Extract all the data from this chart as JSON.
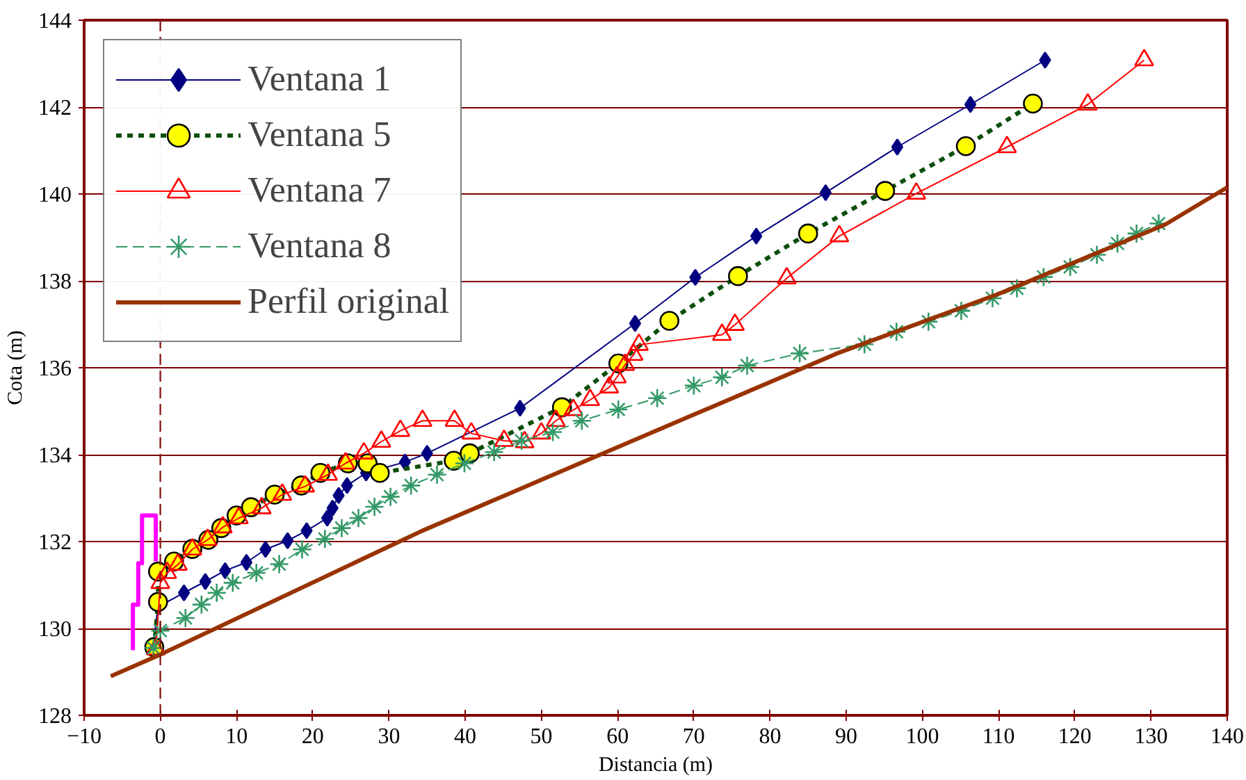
{
  "chart_data": {
    "type": "line",
    "xlabel": "Distancia (m)",
    "ylabel": "Cota (m)",
    "xlim": [
      -10,
      140
    ],
    "xticks": [
      -10,
      0,
      10,
      20,
      30,
      40,
      50,
      60,
      70,
      80,
      90,
      100,
      110,
      120,
      130,
      140
    ],
    "ylim": [
      128,
      144
    ],
    "yticks": [
      128,
      130,
      132,
      134,
      136,
      138,
      140,
      142,
      144
    ],
    "grid": "y",
    "legend": "top left",
    "ref_lines": [
      {
        "axis": "x",
        "value": 0,
        "color": "#8b1a1a",
        "line_style": "dashed"
      }
    ],
    "series": [
      {
        "name": "Ventana 1",
        "color": "#000080",
        "marker": "diamond",
        "line_style": "solid",
        "x": [
          -1,
          -0.3,
          3.1,
          5.9,
          8.5,
          11.3,
          13.8,
          16.7,
          19.2,
          21.9,
          22.6,
          23.4,
          24.5,
          27.0,
          32.1,
          35.0,
          47.2,
          62.3,
          70.2,
          78.2,
          87.3,
          96.7,
          106.3,
          116.1
        ],
        "values": [
          129.55,
          130.5,
          130.82,
          131.08,
          131.33,
          131.52,
          131.82,
          132.02,
          132.25,
          132.54,
          132.77,
          133.06,
          133.29,
          133.58,
          133.83,
          134.03,
          135.07,
          137.02,
          138.08,
          139.03,
          140.03,
          141.08,
          142.06,
          143.08
        ]
      },
      {
        "name": "Ventana 5",
        "color": "#0b4f0b",
        "marker": "circle",
        "line_style": "dotted",
        "colors": [
          "#ffff00",
          "#ffff00",
          "#ffff00",
          "#ffff00",
          "#ffff00",
          "#ffff00",
          "#ffff00",
          "#ffff00",
          "#ffff00",
          "#ffff00",
          "#ffff00",
          "#ffff00",
          "#ffff00",
          "#ffff00",
          "#ffff00",
          "#ffff00",
          "#ffff00",
          "#ffff00",
          "#ffff00",
          "#ffff00",
          "#ffff00",
          "#ffff00",
          "#ffff00",
          "#ffff00",
          "#ffff00"
        ],
        "x": [
          -0.8,
          -0.3,
          -0.3,
          1.8,
          4.2,
          6.3,
          8.0,
          10.0,
          11.9,
          15.0,
          18.5,
          21.0,
          24.6,
          27.2,
          28.8,
          38.5,
          40.6,
          52.7,
          60.1,
          66.8,
          75.8,
          85.0,
          95.1,
          105.7,
          114.5
        ],
        "values": [
          129.57,
          130.61,
          131.31,
          131.54,
          131.83,
          132.04,
          132.31,
          132.6,
          132.79,
          133.08,
          133.29,
          133.58,
          133.8,
          133.8,
          133.58,
          133.86,
          134.03,
          135.09,
          136.1,
          137.08,
          138.11,
          139.09,
          140.07,
          141.1,
          142.08
        ]
      },
      {
        "name": "Ventana 7",
        "color": "#ff0000",
        "marker": "triangle",
        "line_style": "solid",
        "x": [
          -0.6,
          0,
          0.9,
          2.3,
          4.2,
          6.2,
          8.2,
          10.3,
          13.3,
          16.0,
          19.0,
          22.0,
          24.3,
          26.7,
          29.0,
          31.5,
          34.4,
          38.6,
          40.8,
          45.1,
          47.8,
          50.0,
          51.9,
          54.2,
          56.4,
          58.9,
          59.9,
          61.0,
          62.1,
          62.8,
          73.7,
          75.4,
          82.2,
          89.1,
          99.2,
          111.1,
          121.7,
          129.1
        ],
        "values": [
          129.52,
          131.05,
          131.28,
          131.47,
          131.82,
          132.04,
          132.33,
          132.54,
          132.77,
          133.08,
          133.27,
          133.54,
          133.8,
          134.03,
          134.3,
          134.55,
          134.78,
          134.78,
          134.49,
          134.32,
          134.29,
          134.49,
          134.78,
          135.03,
          135.26,
          135.55,
          135.78,
          136.07,
          136.3,
          136.53,
          136.76,
          136.99,
          138.06,
          139.03,
          140.01,
          141.08,
          142.06,
          143.08
        ]
      },
      {
        "name": "Ventana 8",
        "color": "#339966",
        "marker": "cross",
        "line_style": "dashed",
        "x": [
          -0.9,
          0,
          3.3,
          5.4,
          7.4,
          9.5,
          12.6,
          15.6,
          18.6,
          21.6,
          23.8,
          26.0,
          28.1,
          30.2,
          32.9,
          36.3,
          39.9,
          43.8,
          47.4,
          51.5,
          55.3,
          60.1,
          65.2,
          70.0,
          73.7,
          77.0,
          83.9,
          92.4,
          96.6,
          100.8,
          105.1,
          109.2,
          112.4,
          115.9,
          119.4,
          122.9,
          125.6,
          128.1,
          131.0
        ],
        "values": [
          129.55,
          129.95,
          130.24,
          130.55,
          130.82,
          131.05,
          131.28,
          131.48,
          131.82,
          132.06,
          132.31,
          132.54,
          132.8,
          133.03,
          133.29,
          133.54,
          133.8,
          134.06,
          134.32,
          134.52,
          134.78,
          135.04,
          135.3,
          135.59,
          135.78,
          136.05,
          136.33,
          136.54,
          136.83,
          137.06,
          137.31,
          137.6,
          137.83,
          138.09,
          138.32,
          138.6,
          138.86,
          139.09,
          139.32
        ]
      },
      {
        "name": "Perfil original",
        "color": "#993300",
        "marker": "none",
        "line_style": "solid",
        "x": [
          -6.5,
          0,
          34.4,
          88.8,
          110,
          131.9,
          140
        ],
        "values": [
          128.9,
          129.4,
          132.25,
          136.33,
          137.7,
          139.3,
          140.15
        ]
      },
      {
        "color": "#ff00ff",
        "marker": "none",
        "line_style": "solid",
        "x": [
          -3.6,
          -3.6,
          -2.9,
          -2.9,
          -2.4,
          -2.4,
          -0.6,
          -0.6
        ],
        "values": [
          129.5,
          130.55,
          130.55,
          131.5,
          131.5,
          132.6,
          132.6,
          131.55
        ]
      }
    ]
  }
}
